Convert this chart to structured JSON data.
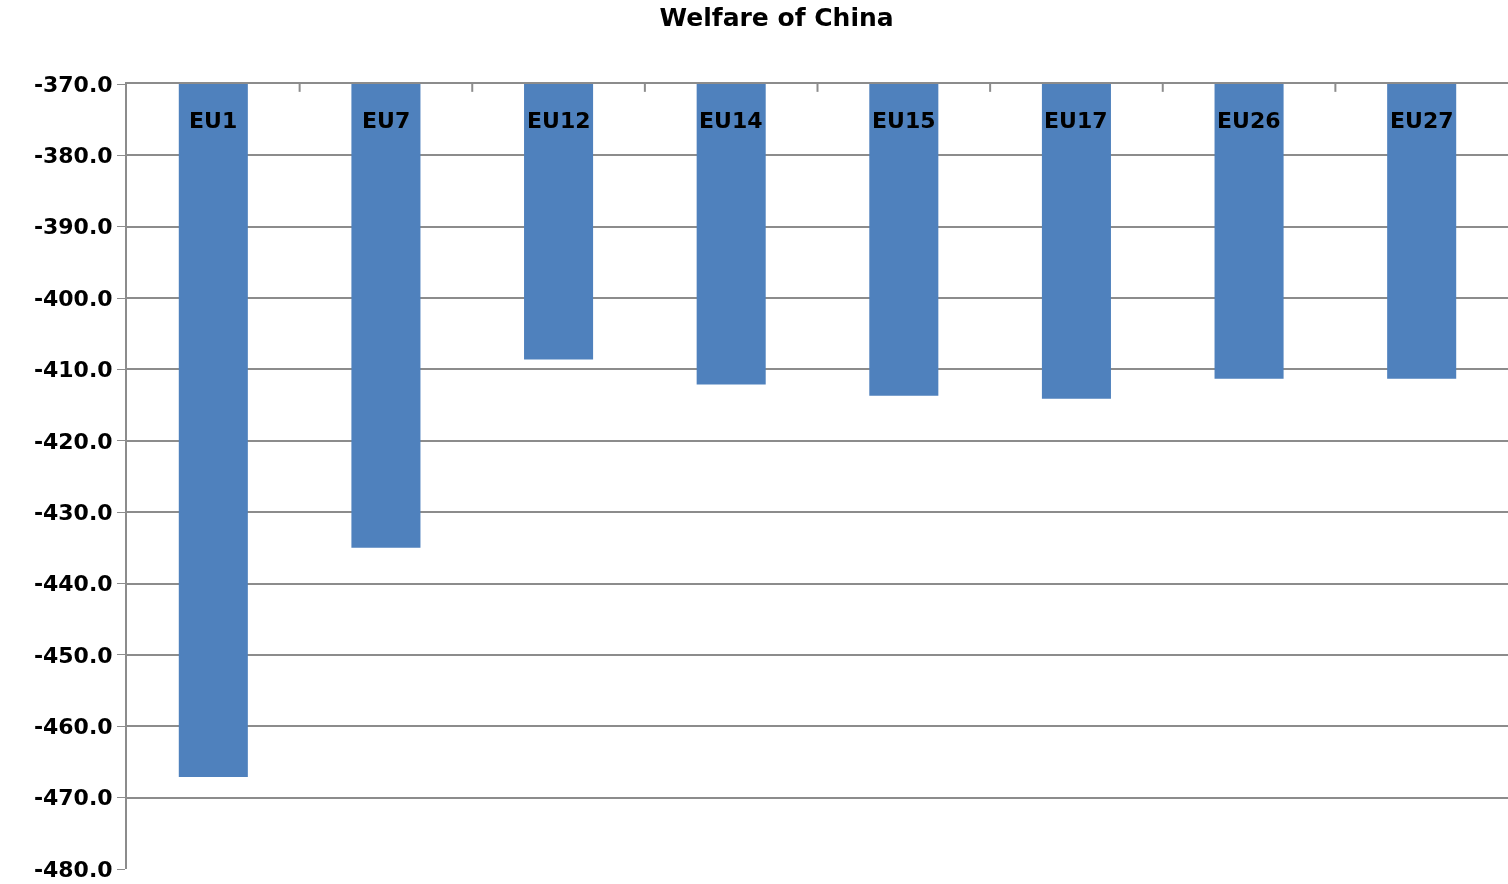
{
  "chart_data": {
    "type": "bar",
    "title": "Welfare of China",
    "categories": [
      "EU1",
      "EU7",
      "EU12",
      "EU14",
      "EU15",
      "EU17",
      "EU26",
      "EU27"
    ],
    "values": [
      -467.1,
      -435.0,
      -408.6,
      -412.1,
      -413.7,
      -414.1,
      -411.3,
      -411.3
    ],
    "color": "#4f81bd",
    "ylim": [
      -480,
      -370
    ],
    "yticks": [
      {
        "value": -480,
        "label": "-480.0"
      },
      {
        "value": -470,
        "label": "-470.0"
      },
      {
        "value": -460,
        "label": "-460.0"
      },
      {
        "value": -450,
        "label": "-450.0"
      },
      {
        "value": -440,
        "label": "-440.0"
      },
      {
        "value": -430,
        "label": "-430.0"
      },
      {
        "value": -420,
        "label": "-420.0"
      },
      {
        "value": -410,
        "label": "-410.0"
      },
      {
        "value": -400,
        "label": "-400.0"
      },
      {
        "value": -390,
        "label": "-390.0"
      },
      {
        "value": -380,
        "label": "-380.0"
      },
      {
        "value": -370,
        "label": "-370.0"
      }
    ],
    "grid": "y"
  }
}
